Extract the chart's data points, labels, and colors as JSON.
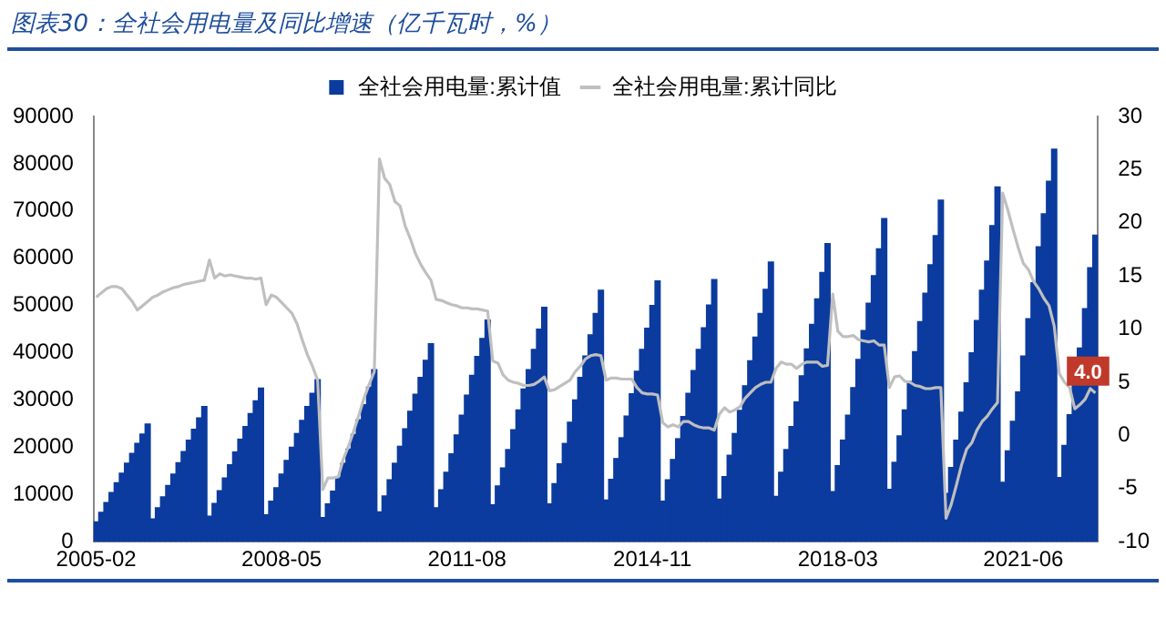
{
  "chart_data": {
    "type": "bar",
    "title": "图表30：全社会用电量及同比增速（亿千瓦时，%）",
    "categories": [
      "2005-02",
      null,
      null,
      null,
      null,
      null,
      null,
      null,
      null,
      null,
      null,
      null,
      null,
      null,
      null,
      null,
      null,
      null,
      null,
      null,
      null,
      null,
      null,
      null,
      null,
      null,
      null,
      null,
      null,
      null,
      null,
      null,
      null,
      null,
      null,
      null,
      "2008-05",
      null,
      null,
      null,
      null,
      null,
      null,
      null,
      null,
      null,
      null,
      null,
      null,
      null,
      null,
      null,
      null,
      null,
      null,
      null,
      null,
      null,
      null,
      null,
      null,
      null,
      null,
      null,
      null,
      null,
      null,
      null,
      null,
      null,
      null,
      null,
      "2011-08",
      null,
      null,
      null,
      null,
      null,
      null,
      null,
      null,
      null,
      null,
      null,
      null,
      null,
      null,
      null,
      null,
      null,
      null,
      null,
      null,
      null,
      null,
      null,
      null,
      null,
      null,
      null,
      null,
      null,
      null,
      null,
      null,
      null,
      null,
      null,
      "2014-11",
      null,
      null,
      null,
      null,
      null,
      null,
      null,
      null,
      null,
      null,
      null,
      null,
      null,
      null,
      null,
      null,
      null,
      null,
      null,
      null,
      null,
      null,
      null,
      null,
      null,
      null,
      null,
      null,
      null,
      null,
      null,
      null,
      null,
      null,
      null,
      "2018-03",
      null,
      null,
      null,
      null,
      null,
      null,
      null,
      null,
      null,
      null,
      null,
      null,
      null,
      null,
      null,
      null,
      null,
      null,
      null,
      null,
      null,
      null,
      null,
      null,
      null,
      null,
      null,
      null,
      null,
      null,
      null,
      null,
      null,
      null,
      null,
      "2021-06",
      null,
      null,
      null,
      null,
      null,
      null,
      null,
      null,
      null,
      null,
      null,
      null,
      null,
      null
    ],
    "series": [
      {
        "name": "全社会用电量:累计值",
        "color": "#0b3b9e",
        "values": [
          4200,
          6200,
          8300,
          10400,
          12500,
          14500,
          16600,
          18700,
          20800,
          22800,
          24900,
          4800,
          7200,
          9500,
          11900,
          14300,
          16700,
          19100,
          21500,
          23800,
          26200,
          28600,
          5400,
          8100,
          10800,
          13500,
          16300,
          19000,
          21700,
          24400,
          27100,
          29800,
          32500,
          5700,
          8600,
          11400,
          14300,
          17200,
          20000,
          22900,
          25700,
          28600,
          31400,
          34300,
          5100,
          8000,
          10700,
          13600,
          16600,
          19600,
          22700,
          25800,
          29000,
          32700,
          36400,
          6300,
          9700,
          13100,
          16600,
          20200,
          23900,
          27600,
          31200,
          34800,
          38400,
          41900,
          7200,
          11000,
          14700,
          18600,
          22600,
          26800,
          31000,
          35200,
          39200,
          43000,
          46900,
          7800,
          11800,
          15600,
          19500,
          23700,
          27900,
          32300,
          36400,
          40700,
          45000,
          49600,
          8000,
          12300,
          16500,
          20800,
          25300,
          30000,
          34800,
          39300,
          43800,
          48300,
          53200,
          8800,
          13200,
          17600,
          22000,
          26600,
          31300,
          36100,
          40700,
          45200,
          50000,
          55200,
          8600,
          13100,
          17400,
          21800,
          26500,
          31400,
          36200,
          40700,
          45300,
          50100,
          55500,
          9000,
          13800,
          18300,
          22900,
          27800,
          33000,
          38300,
          43300,
          48300,
          53400,
          59200,
          9600,
          14700,
          19500,
          24400,
          29600,
          35100,
          40800,
          46000,
          51400,
          57000,
          63100,
          10600,
          16100,
          21500,
          26800,
          32600,
          38600,
          44700,
          50500,
          56300,
          62000,
          68400,
          11100,
          16800,
          22400,
          27900,
          33900,
          40200,
          46600,
          52600,
          58600,
          64800,
          72300,
          10200,
          15700,
          21500,
          27400,
          33600,
          40000,
          46800,
          53200,
          59400,
          66900,
          75100,
          12600,
          19200,
          25500,
          31700,
          39300,
          47200,
          54800,
          62400,
          69400,
          76300,
          83100,
          13600,
          20400,
          26900,
          33400,
          41000,
          49300,
          58000,
          64900
        ]
      },
      {
        "name": "全社会用电量:累计同比",
        "type": "line",
        "axis": "y2",
        "color": "#bfbfbf",
        "values": [
          13.0,
          13.4,
          13.8,
          14.0,
          14.0,
          13.8,
          13.2,
          12.6,
          11.8,
          12.2,
          12.6,
          13.0,
          13.2,
          13.5,
          13.7,
          13.9,
          14.0,
          14.2,
          14.3,
          14.4,
          14.5,
          14.6,
          16.5,
          14.8,
          15.2,
          15.0,
          15.1,
          15.0,
          14.9,
          14.8,
          14.8,
          14.7,
          14.8,
          12.3,
          13.2,
          13.0,
          12.5,
          12.0,
          11.5,
          10.5,
          9.0,
          7.6,
          6.5,
          5.2,
          -5.1,
          -4.0,
          -4.0,
          -3.9,
          -2.2,
          -1.0,
          0.4,
          1.9,
          3.5,
          4.8,
          6.0,
          26.0,
          24.2,
          23.6,
          22.0,
          21.6,
          19.7,
          18.5,
          17.1,
          16.1,
          15.3,
          14.6,
          12.8,
          12.7,
          12.5,
          12.3,
          12.2,
          12.0,
          12.0,
          11.9,
          11.9,
          11.8,
          11.7,
          7.0,
          6.8,
          5.7,
          5.2,
          5.0,
          4.9,
          4.7,
          4.7,
          4.8,
          5.1,
          5.5,
          4.2,
          4.3,
          4.6,
          4.9,
          5.2,
          6.0,
          6.5,
          7.2,
          7.5,
          7.6,
          7.5,
          5.2,
          5.4,
          5.4,
          5.3,
          5.3,
          5.3,
          4.5,
          4.0,
          3.9,
          3.9,
          3.8,
          1.2,
          0.8,
          1.0,
          0.8,
          1.3,
          1.3,
          1.0,
          0.8,
          0.7,
          0.7,
          0.5,
          2.0,
          2.6,
          2.2,
          2.4,
          2.7,
          3.5,
          4.0,
          4.5,
          4.8,
          5.0,
          5.0,
          6.3,
          6.9,
          6.7,
          6.7,
          6.3,
          6.7,
          6.9,
          6.9,
          6.9,
          6.5,
          6.6,
          13.3,
          9.8,
          9.3,
          9.3,
          9.4,
          9.0,
          8.9,
          8.8,
          8.9,
          8.5,
          8.5,
          4.5,
          5.5,
          5.6,
          5.1,
          5.0,
          4.7,
          4.6,
          4.4,
          4.4,
          4.5,
          4.5,
          -7.8,
          -6.5,
          -4.7,
          -2.8,
          -1.3,
          -0.7,
          0.5,
          1.3,
          1.8,
          2.5,
          3.1,
          22.8,
          21.2,
          19.4,
          17.7,
          16.2,
          15.6,
          14.5,
          13.8,
          12.9,
          12.2,
          10.3,
          5.8,
          5.0,
          4.5,
          2.5,
          2.9,
          3.4,
          4.4,
          4.0
        ],
        "value_labels": [
          null,
          null,
          null,
          null,
          null,
          null,
          null,
          null,
          null,
          null,
          null,
          null,
          null,
          null,
          null,
          null,
          null,
          null,
          null,
          null,
          null,
          null,
          null,
          null,
          null,
          null,
          null,
          null,
          null,
          null,
          null,
          null,
          null,
          null,
          null,
          null,
          null,
          null,
          null,
          null,
          null,
          null,
          null,
          null,
          null,
          null,
          null,
          null,
          null,
          null,
          null,
          null,
          null,
          null,
          null,
          null,
          null,
          null,
          null,
          null,
          null,
          null,
          null,
          null,
          null,
          null,
          null,
          null,
          null,
          null,
          null,
          null,
          null,
          null,
          null,
          null,
          null,
          null,
          null,
          null,
          null,
          null,
          null,
          null,
          null,
          null,
          null,
          null,
          null,
          null,
          null,
          null,
          null,
          null,
          null,
          null,
          null,
          null,
          null,
          null,
          null,
          null,
          null,
          null,
          null,
          null,
          null,
          null,
          null,
          null,
          null,
          null,
          null,
          null,
          null,
          null,
          null,
          null,
          null,
          null,
          null,
          null,
          null,
          null,
          null,
          null,
          null,
          null,
          null,
          null,
          null,
          null,
          null,
          null,
          null,
          null,
          null,
          null,
          null,
          null,
          null,
          null,
          null,
          null,
          null,
          null,
          null,
          null,
          null,
          null,
          null,
          null,
          null,
          null,
          null,
          null,
          null,
          null,
          null,
          null,
          null,
          null,
          null,
          null,
          null,
          null,
          null,
          null,
          null,
          null,
          null,
          null,
          null,
          null,
          null,
          null,
          null,
          null,
          null,
          null,
          null,
          null,
          null,
          null,
          null,
          null,
          null,
          null,
          null,
          null,
          null,
          null,
          null,
          null,
          "4.0"
        ]
      }
    ],
    "ylim": [
      0,
      90000
    ],
    "yticks": [
      0,
      10000,
      20000,
      30000,
      40000,
      50000,
      60000,
      70000,
      80000,
      90000
    ],
    "y2lim": [
      -10,
      30
    ],
    "y2ticks": [
      -10,
      -5,
      0,
      5,
      10,
      15,
      20,
      25,
      30
    ],
    "legend": "top",
    "grid": false,
    "marker": "none"
  }
}
